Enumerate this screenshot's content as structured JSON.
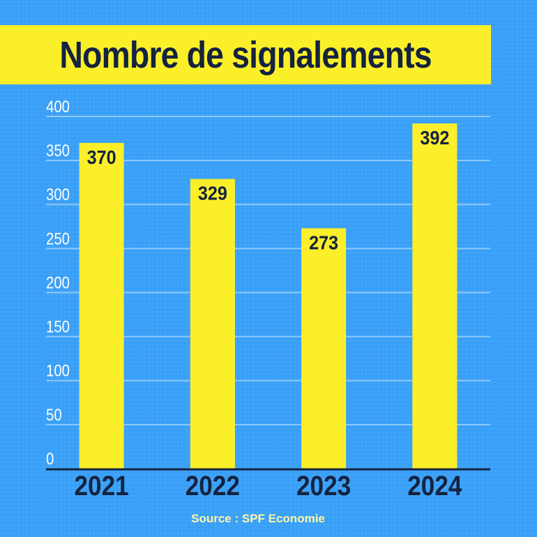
{
  "chart_data": {
    "type": "bar",
    "title": "Nombre de signalements",
    "categories": [
      "2021",
      "2022",
      "2023",
      "2024"
    ],
    "values": [
      370,
      329,
      273,
      392
    ],
    "data_labels": [
      "370",
      "329",
      "273",
      "392"
    ],
    "ylim": [
      0,
      400
    ],
    "yticks": [
      "0",
      "50",
      "100",
      "150",
      "200",
      "250",
      "300",
      "350",
      "400"
    ],
    "grid": true,
    "xlabel": "",
    "ylabel": ""
  },
  "source": "Source : SPF Economie",
  "colors": {
    "background": "#3aa0f7",
    "bar": "#fbef2a",
    "title_bg": "#fbef2a",
    "text_dark": "#14233f",
    "tick_label": "#ffffff",
    "grid": "#8fcaf8",
    "source_text": "#fff6a8"
  }
}
